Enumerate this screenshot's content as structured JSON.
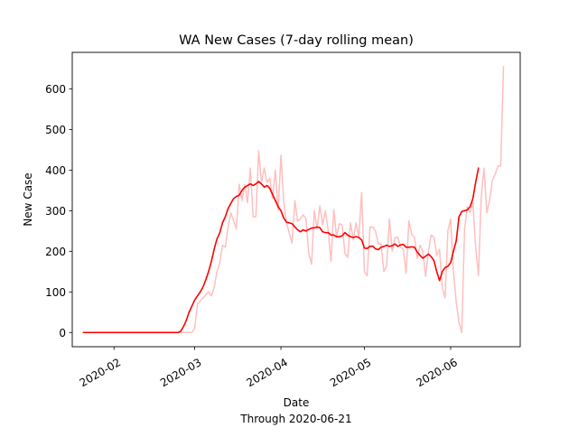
{
  "chart_data": {
    "type": "line",
    "title": "WA New Cases (7-day rolling mean)",
    "xlabel": "Date",
    "xlabel_sub": "Through 2020-06-21",
    "ylabel": "New Case",
    "ylim": [
      -35,
      690
    ],
    "xlim": [
      "2020-01-17",
      "2020-06-26"
    ],
    "x_ticks": [
      "2020-02",
      "2020-03",
      "2020-04",
      "2020-05",
      "2020-06"
    ],
    "y_ticks": [
      0,
      100,
      200,
      300,
      400,
      500,
      600
    ],
    "grid": false,
    "series": [
      {
        "color": "#ffbfbf",
        "points": [
          [
            "2020-01-21",
            0
          ],
          [
            "2020-02-24",
            0
          ],
          [
            "2020-02-29",
            0
          ],
          [
            "2020-03-01",
            10
          ],
          [
            "2020-03-02",
            70
          ],
          [
            "2020-03-04",
            85
          ],
          [
            "2020-03-06",
            100
          ],
          [
            "2020-03-07",
            90
          ],
          [
            "2020-03-08",
            110
          ],
          [
            "2020-03-09",
            150
          ],
          [
            "2020-03-10",
            170
          ],
          [
            "2020-03-11",
            215
          ],
          [
            "2020-03-12",
            210
          ],
          [
            "2020-03-13",
            260
          ],
          [
            "2020-03-14",
            295
          ],
          [
            "2020-03-15",
            275
          ],
          [
            "2020-03-16",
            255
          ],
          [
            "2020-03-17",
            365
          ],
          [
            "2020-03-18",
            325
          ],
          [
            "2020-03-19",
            365
          ],
          [
            "2020-03-20",
            320
          ],
          [
            "2020-03-21",
            405
          ],
          [
            "2020-03-22",
            285
          ],
          [
            "2020-03-23",
            285
          ],
          [
            "2020-03-24",
            448
          ],
          [
            "2020-03-25",
            370
          ],
          [
            "2020-03-26",
            405
          ],
          [
            "2020-03-27",
            370
          ],
          [
            "2020-03-28",
            380
          ],
          [
            "2020-03-29",
            330
          ],
          [
            "2020-03-30",
            400
          ],
          [
            "2020-03-31",
            300
          ],
          [
            "2020-04-01",
            437
          ],
          [
            "2020-04-02",
            325
          ],
          [
            "2020-04-03",
            270
          ],
          [
            "2020-04-04",
            245
          ],
          [
            "2020-04-05",
            220
          ],
          [
            "2020-04-06",
            325
          ],
          [
            "2020-04-07",
            275
          ],
          [
            "2020-04-08",
            280
          ],
          [
            "2020-04-09",
            290
          ],
          [
            "2020-04-10",
            280
          ],
          [
            "2020-04-11",
            195
          ],
          [
            "2020-04-12",
            168
          ],
          [
            "2020-04-13",
            300
          ],
          [
            "2020-04-14",
            255
          ],
          [
            "2020-04-15",
            312
          ],
          [
            "2020-04-16",
            265
          ],
          [
            "2020-04-17",
            300
          ],
          [
            "2020-04-18",
            250
          ],
          [
            "2020-04-19",
            175
          ],
          [
            "2020-04-20",
            303
          ],
          [
            "2020-04-21",
            235
          ],
          [
            "2020-04-22",
            268
          ],
          [
            "2020-04-23",
            265
          ],
          [
            "2020-04-24",
            195
          ],
          [
            "2020-04-25",
            185
          ],
          [
            "2020-04-26",
            270
          ],
          [
            "2020-04-27",
            228
          ],
          [
            "2020-04-28",
            270
          ],
          [
            "2020-04-29",
            236
          ],
          [
            "2020-04-30",
            345
          ],
          [
            "2020-05-01",
            150
          ],
          [
            "2020-05-02",
            140
          ],
          [
            "2020-05-03",
            260
          ],
          [
            "2020-05-04",
            260
          ],
          [
            "2020-05-05",
            250
          ],
          [
            "2020-05-06",
            218
          ],
          [
            "2020-05-07",
            218
          ],
          [
            "2020-05-08",
            150
          ],
          [
            "2020-05-09",
            163
          ],
          [
            "2020-05-10",
            280
          ],
          [
            "2020-05-11",
            200
          ],
          [
            "2020-05-12",
            234
          ],
          [
            "2020-05-13",
            235
          ],
          [
            "2020-05-14",
            210
          ],
          [
            "2020-05-15",
            205
          ],
          [
            "2020-05-16",
            146
          ],
          [
            "2020-05-17",
            275
          ],
          [
            "2020-05-18",
            242
          ],
          [
            "2020-05-19",
            235
          ],
          [
            "2020-05-20",
            182
          ],
          [
            "2020-05-21",
            215
          ],
          [
            "2020-05-22",
            200
          ],
          [
            "2020-05-23",
            138
          ],
          [
            "2020-05-24",
            200
          ],
          [
            "2020-05-25",
            240
          ],
          [
            "2020-05-26",
            235
          ],
          [
            "2020-05-27",
            190
          ],
          [
            "2020-05-28",
            205
          ],
          [
            "2020-05-29",
            110
          ],
          [
            "2020-05-30",
            85
          ],
          [
            "2020-05-31",
            250
          ],
          [
            "2020-06-01",
            280
          ],
          [
            "2020-06-02",
            150
          ],
          [
            "2020-06-03",
            75
          ],
          [
            "2020-06-04",
            25
          ],
          [
            "2020-06-05",
            0
          ],
          [
            "2020-06-06",
            255
          ],
          [
            "2020-06-07",
            310
          ],
          [
            "2020-06-08",
            295
          ],
          [
            "2020-06-09",
            320
          ],
          [
            "2020-06-10",
            210
          ],
          [
            "2020-06-11",
            140
          ],
          [
            "2020-06-12",
            335
          ],
          [
            "2020-06-13",
            405
          ],
          [
            "2020-06-14",
            295
          ],
          [
            "2020-06-15",
            325
          ],
          [
            "2020-06-16",
            375
          ],
          [
            "2020-06-17",
            390
          ],
          [
            "2020-06-18",
            410
          ],
          [
            "2020-06-19",
            410
          ],
          [
            "2020-06-20",
            655
          ]
        ]
      },
      {
        "color": "#ff0000",
        "points": [
          [
            "2020-01-21",
            0
          ],
          [
            "2020-02-24",
            0
          ],
          [
            "2020-02-25",
            3
          ],
          [
            "2020-02-26",
            15
          ],
          [
            "2020-02-27",
            30
          ],
          [
            "2020-02-28",
            50
          ],
          [
            "2020-02-29",
            65
          ],
          [
            "2020-03-01",
            80
          ],
          [
            "2020-03-02",
            90
          ],
          [
            "2020-03-03",
            100
          ],
          [
            "2020-03-04",
            112
          ],
          [
            "2020-03-05",
            130
          ],
          [
            "2020-03-06",
            150
          ],
          [
            "2020-03-07",
            175
          ],
          [
            "2020-03-08",
            205
          ],
          [
            "2020-03-09",
            230
          ],
          [
            "2020-03-10",
            245
          ],
          [
            "2020-03-11",
            270
          ],
          [
            "2020-03-12",
            285
          ],
          [
            "2020-03-13",
            305
          ],
          [
            "2020-03-14",
            318
          ],
          [
            "2020-03-15",
            330
          ],
          [
            "2020-03-16",
            335
          ],
          [
            "2020-03-17",
            338
          ],
          [
            "2020-03-18",
            350
          ],
          [
            "2020-03-19",
            358
          ],
          [
            "2020-03-20",
            362
          ],
          [
            "2020-03-21",
            366
          ],
          [
            "2020-03-22",
            362
          ],
          [
            "2020-03-23",
            366
          ],
          [
            "2020-03-24",
            372
          ],
          [
            "2020-03-25",
            366
          ],
          [
            "2020-03-26",
            358
          ],
          [
            "2020-03-27",
            362
          ],
          [
            "2020-03-28",
            355
          ],
          [
            "2020-03-29",
            340
          ],
          [
            "2020-03-30",
            325
          ],
          [
            "2020-03-31",
            310
          ],
          [
            "2020-04-01",
            300
          ],
          [
            "2020-04-02",
            282
          ],
          [
            "2020-04-03",
            272
          ],
          [
            "2020-04-04",
            270
          ],
          [
            "2020-04-05",
            268
          ],
          [
            "2020-04-06",
            260
          ],
          [
            "2020-04-07",
            253
          ],
          [
            "2020-04-08",
            248
          ],
          [
            "2020-04-09",
            253
          ],
          [
            "2020-04-10",
            250
          ],
          [
            "2020-04-11",
            254
          ],
          [
            "2020-04-12",
            257
          ],
          [
            "2020-04-13",
            258
          ],
          [
            "2020-04-14",
            260
          ],
          [
            "2020-04-15",
            258
          ],
          [
            "2020-04-16",
            248
          ],
          [
            "2020-04-17",
            246
          ],
          [
            "2020-04-18",
            246
          ],
          [
            "2020-04-19",
            240
          ],
          [
            "2020-04-20",
            240
          ],
          [
            "2020-04-21",
            236
          ],
          [
            "2020-04-22",
            236
          ],
          [
            "2020-04-23",
            238
          ],
          [
            "2020-04-24",
            246
          ],
          [
            "2020-04-25",
            240
          ],
          [
            "2020-04-26",
            236
          ],
          [
            "2020-04-27",
            234
          ],
          [
            "2020-04-28",
            236
          ],
          [
            "2020-04-29",
            234
          ],
          [
            "2020-04-30",
            228
          ],
          [
            "2020-05-01",
            208
          ],
          [
            "2020-05-02",
            207
          ],
          [
            "2020-05-03",
            212
          ],
          [
            "2020-05-04",
            213
          ],
          [
            "2020-05-05",
            206
          ],
          [
            "2020-05-06",
            204
          ],
          [
            "2020-05-07",
            210
          ],
          [
            "2020-05-08",
            212
          ],
          [
            "2020-05-09",
            215
          ],
          [
            "2020-05-10",
            212
          ],
          [
            "2020-05-11",
            214
          ],
          [
            "2020-05-12",
            218
          ],
          [
            "2020-05-13",
            212
          ],
          [
            "2020-05-14",
            216
          ],
          [
            "2020-05-15",
            217
          ],
          [
            "2020-05-16",
            210
          ],
          [
            "2020-05-17",
            210
          ],
          [
            "2020-05-18",
            211
          ],
          [
            "2020-05-19",
            210
          ],
          [
            "2020-05-20",
            198
          ],
          [
            "2020-05-21",
            190
          ],
          [
            "2020-05-22",
            183
          ],
          [
            "2020-05-23",
            188
          ],
          [
            "2020-05-24",
            193
          ],
          [
            "2020-05-25",
            187
          ],
          [
            "2020-05-26",
            177
          ],
          [
            "2020-05-27",
            150
          ],
          [
            "2020-05-28",
            128
          ],
          [
            "2020-05-29",
            150
          ],
          [
            "2020-05-30",
            160
          ],
          [
            "2020-05-31",
            163
          ],
          [
            "2020-06-01",
            172
          ],
          [
            "2020-06-02",
            200
          ],
          [
            "2020-06-03",
            225
          ],
          [
            "2020-06-04",
            285
          ],
          [
            "2020-06-05",
            298
          ],
          [
            "2020-06-06",
            300
          ],
          [
            "2020-06-07",
            302
          ],
          [
            "2020-06-08",
            310
          ],
          [
            "2020-06-09",
            330
          ],
          [
            "2020-06-10",
            370
          ],
          [
            "2020-06-11",
            405
          ]
        ]
      }
    ]
  }
}
